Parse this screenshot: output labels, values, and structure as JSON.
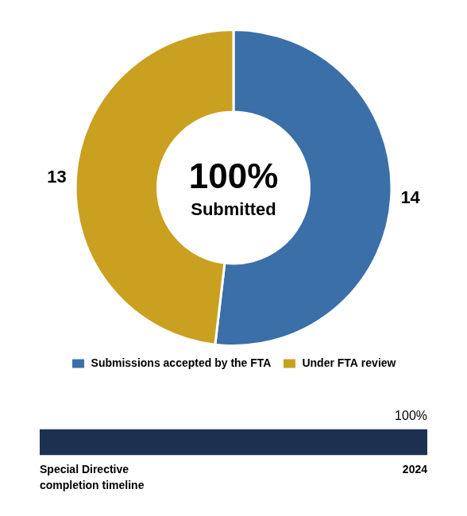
{
  "chart_data": [
    {
      "type": "pie",
      "categories": [
        "Submissions accepted by the FTA",
        "Under FTA review"
      ],
      "values": [
        14,
        13
      ],
      "colors": [
        "#3a6fa8",
        "#c9a020"
      ],
      "data_labels": true,
      "annotations": [
        "100%",
        "Submitted"
      ],
      "legend": "bottom"
    },
    {
      "type": "bar",
      "orientation": "horizontal",
      "categories": [
        null
      ],
      "values": [
        100
      ],
      "value_labels": [
        "100%"
      ],
      "color": "#1e3050",
      "data_labels": true,
      "xlim": [
        0,
        100
      ],
      "tick_labels": false,
      "grid": false,
      "annotations": [
        "Special Directive\ncompletion timeline",
        "2024"
      ]
    }
  ]
}
